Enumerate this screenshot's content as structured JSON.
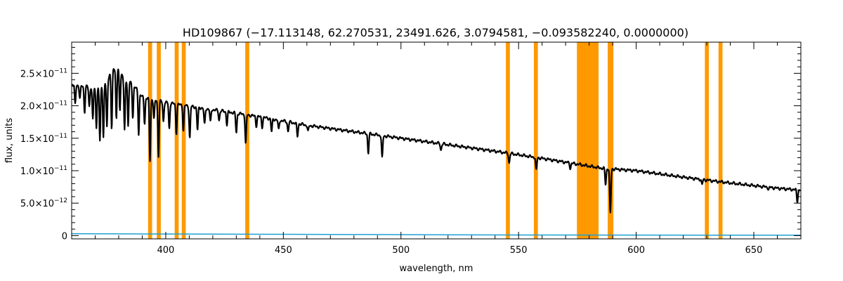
{
  "chart_data": {
    "type": "line",
    "title": "HD109867    (−17.113148, 62.270531, 23491.626, 3.0794581, −0.093582240, 0.0000000)",
    "xlabel": "wavelength, nm",
    "ylabel": "flux, units",
    "xlim": [
      360,
      670
    ],
    "ylim": [
      -5e-13,
      2.98e-11
    ],
    "x_ticks": [
      400,
      450,
      500,
      550,
      600,
      650
    ],
    "x_tick_labels": [
      "400",
      "450",
      "500",
      "550",
      "600",
      "650"
    ],
    "y_ticks": [
      0,
      5e-12,
      1e-11,
      1.5e-11,
      2e-11,
      2.5e-11
    ],
    "y_tick_labels": [
      {
        "mant": "0",
        "exp": ""
      },
      {
        "mant": "5.0×10",
        "exp": "−12"
      },
      {
        "mant": "1.0×10",
        "exp": "−11"
      },
      {
        "mant": "1.5×10",
        "exp": "−11"
      },
      {
        "mant": "2.0×10",
        "exp": "−11"
      },
      {
        "mant": "2.5×10",
        "exp": "−11"
      }
    ],
    "grid": false,
    "masked_bands": [
      [
        392.5,
        394.2
      ],
      [
        396.2,
        397.9
      ],
      [
        403.8,
        405.5
      ],
      [
        406.8,
        408.5
      ],
      [
        433.8,
        435.5
      ],
      [
        544.6,
        546.3
      ],
      [
        556.5,
        558.2
      ],
      [
        574.8,
        584.0
      ],
      [
        587.9,
        590.3
      ],
      [
        629.2,
        630.9
      ],
      [
        635.0,
        636.7
      ]
    ],
    "band_color": "#ff9900",
    "series": [
      {
        "color": "#000000",
        "continuum": [
          [
            360,
            2.33e-11
          ],
          [
            380,
            2.22e-11
          ],
          [
            400,
            2.05e-11
          ],
          [
            420,
            1.94e-11
          ],
          [
            440,
            1.83e-11
          ],
          [
            460,
            1.7e-11
          ],
          [
            480,
            1.6e-11
          ],
          [
            500,
            1.5e-11
          ],
          [
            520,
            1.4e-11
          ],
          [
            540,
            1.3e-11
          ],
          [
            560,
            1.19e-11
          ],
          [
            575,
            1.1e-11
          ],
          [
            585,
            1.04e-11
          ],
          [
            600,
            1e-11
          ],
          [
            620,
            9e-12
          ],
          [
            640,
            8.1e-12
          ],
          [
            660,
            7.3e-12
          ],
          [
            670,
            7e-12
          ]
        ],
        "bumps": [
          [
            372,
            390,
            2.2e-12
          ],
          [
            375,
            382,
            1.5e-12
          ]
        ],
        "absorption_lines": [
          [
            361.5,
            3e-12
          ],
          [
            363.5,
            2e-12
          ],
          [
            365.5,
            4e-12
          ],
          [
            367.5,
            3e-12
          ],
          [
            369.0,
            5e-12
          ],
          [
            370.5,
            6e-12
          ],
          [
            372.0,
            8e-12
          ],
          [
            373.5,
            8e-12
          ],
          [
            375.0,
            7e-12
          ],
          [
            377.0,
            9e-12
          ],
          [
            379.0,
            8e-12
          ],
          [
            380.5,
            6e-12
          ],
          [
            382.5,
            8e-12
          ],
          [
            384.0,
            7e-12
          ],
          [
            386.0,
            5e-12
          ],
          [
            388.5,
            6.5e-12
          ],
          [
            391.0,
            4e-12
          ],
          [
            393.3,
            9.5e-12
          ],
          [
            395.0,
            3e-12
          ],
          [
            396.9,
            8.5e-12
          ],
          [
            399.0,
            3e-12
          ],
          [
            401.5,
            4e-12
          ],
          [
            404.5,
            4.5e-12
          ],
          [
            407.5,
            4e-12
          ],
          [
            410.2,
            5e-12
          ],
          [
            413.5,
            3.5e-12
          ],
          [
            416.5,
            2.5e-12
          ],
          [
            419.0,
            2e-12
          ],
          [
            422.7,
            1.5e-12
          ],
          [
            426.0,
            2e-12
          ],
          [
            430.0,
            3e-12
          ],
          [
            434.0,
            4.5e-12
          ],
          [
            438.5,
            1.5e-12
          ],
          [
            441.0,
            1.5e-12
          ],
          [
            445.0,
            2e-12
          ],
          [
            448.0,
            1.5e-12
          ],
          [
            452.0,
            1.5e-12
          ],
          [
            456.0,
            2e-12
          ],
          [
            460.5,
            1e-12
          ],
          [
            486.1,
            3e-12
          ],
          [
            492.0,
            3.5e-12
          ],
          [
            517.0,
            1e-12
          ],
          [
            546.0,
            1.5e-12
          ],
          [
            557.5,
            2e-12
          ],
          [
            572.0,
            8e-13
          ],
          [
            587.0,
            2.5e-12
          ],
          [
            589.0,
            7e-12
          ],
          [
            628.0,
            8e-13
          ],
          [
            656.3,
            3e-13
          ],
          [
            668.5,
            1.8e-12
          ]
        ]
      },
      {
        "color": "#1ea0d2",
        "points": [
          [
            360,
            3e-13
          ],
          [
            400,
            2.5e-13
          ],
          [
            450,
            2e-13
          ],
          [
            500,
            1.5e-13
          ],
          [
            550,
            1e-13
          ],
          [
            600,
            8e-14
          ],
          [
            670,
            6e-14
          ]
        ]
      }
    ]
  }
}
